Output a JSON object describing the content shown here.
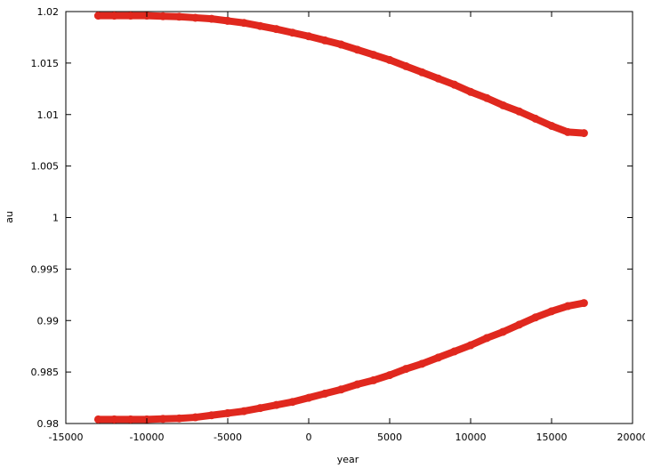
{
  "chart_data": {
    "type": "scatter",
    "xlabel": "year",
    "ylabel": "au",
    "xlim": [
      -15000,
      20000
    ],
    "ylim": [
      0.98,
      1.02
    ],
    "xticks": [
      "-15000",
      "-10000",
      "-5000",
      "0",
      "5000",
      "10000",
      "15000",
      "20000"
    ],
    "yticks": [
      "0.98",
      "0.985",
      "0.99",
      "0.995",
      "1",
      "1.005",
      "1.01",
      "1.015",
      "1.02"
    ],
    "grid": false,
    "legend": "none",
    "series": [
      {
        "color": "#e0281e",
        "x": [
          -13000,
          -12000,
          -11000,
          -10000,
          -9000,
          -8000,
          -7000,
          -6000,
          -5000,
          -4000,
          -3000,
          -2000,
          -1000,
          0,
          1000,
          2000,
          3000,
          4000,
          5000,
          6000,
          7000,
          8000,
          9000,
          10000,
          11000,
          12000,
          13000,
          14000,
          15000,
          16000,
          17000
        ],
        "values": [
          1.0196,
          1.0196,
          1.0196,
          1.0196,
          1.01955,
          1.0195,
          1.0194,
          1.0193,
          1.0191,
          1.0189,
          1.0186,
          1.0183,
          1.01795,
          1.0176,
          1.0172,
          1.0168,
          1.0163,
          1.0158,
          1.0153,
          1.0147,
          1.0141,
          1.0135,
          1.0129,
          1.0122,
          1.0116,
          1.0109,
          1.0103,
          1.0096,
          1.0089,
          1.0083,
          1.0082
        ]
      },
      {
        "color": "#e0281e",
        "x": [
          -13000,
          -12000,
          -11000,
          -10000,
          -9000,
          -8000,
          -7000,
          -6000,
          -5000,
          -4000,
          -3000,
          -2000,
          -1000,
          0,
          1000,
          2000,
          3000,
          4000,
          5000,
          6000,
          7000,
          8000,
          9000,
          10000,
          11000,
          12000,
          13000,
          14000,
          15000,
          16000,
          17000
        ],
        "values": [
          0.9804,
          0.9804,
          0.9804,
          0.9804,
          0.98045,
          0.9805,
          0.9806,
          0.9808,
          0.981,
          0.9812,
          0.9815,
          0.9818,
          0.9821,
          0.9825,
          0.9829,
          0.9833,
          0.9838,
          0.9842,
          0.9847,
          0.9853,
          0.9858,
          0.9864,
          0.987,
          0.9876,
          0.9883,
          0.9889,
          0.9896,
          0.9903,
          0.9909,
          0.9914,
          0.9917
        ]
      }
    ]
  }
}
